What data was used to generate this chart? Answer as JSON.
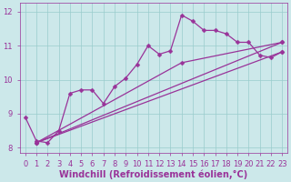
{
  "bg_color": "#cce8ea",
  "grid_color": "#99cccc",
  "line_color": "#993399",
  "xlim": [
    -0.5,
    23.5
  ],
  "ylim": [
    7.85,
    12.25
  ],
  "yticks": [
    8,
    9,
    10,
    11,
    12
  ],
  "xticks": [
    0,
    1,
    2,
    3,
    4,
    5,
    6,
    7,
    8,
    9,
    10,
    11,
    12,
    13,
    14,
    15,
    16,
    17,
    18,
    19,
    20,
    21,
    22,
    23
  ],
  "xlabel": "Windchill (Refroidissement éolien,°C)",
  "line1_x": [
    0,
    1,
    2,
    3,
    4,
    5,
    6,
    7,
    8,
    9,
    10,
    11,
    12,
    13,
    14,
    15,
    16,
    17,
    18,
    19,
    20,
    21,
    22,
    23
  ],
  "line1_y": [
    8.9,
    8.2,
    8.15,
    8.5,
    9.6,
    9.7,
    9.7,
    9.3,
    9.8,
    10.05,
    10.45,
    11.0,
    10.75,
    10.85,
    11.9,
    11.72,
    11.45,
    11.45,
    11.35,
    11.1,
    11.1,
    10.72,
    10.65,
    10.82
  ],
  "line2_x": [
    1,
    23
  ],
  "line2_y": [
    8.15,
    10.82
  ],
  "line3_x": [
    1,
    14,
    23
  ],
  "line3_y": [
    8.15,
    10.5,
    11.1
  ],
  "line4_x": [
    1,
    23
  ],
  "line4_y": [
    8.15,
    11.1
  ],
  "marker": "D",
  "markersize": 2.5,
  "linewidth": 0.9,
  "xlabel_fontsize": 7,
  "tick_fontsize": 6,
  "tick_color": "#993399",
  "xlabel_color": "#993399",
  "axis_color": "#993399"
}
